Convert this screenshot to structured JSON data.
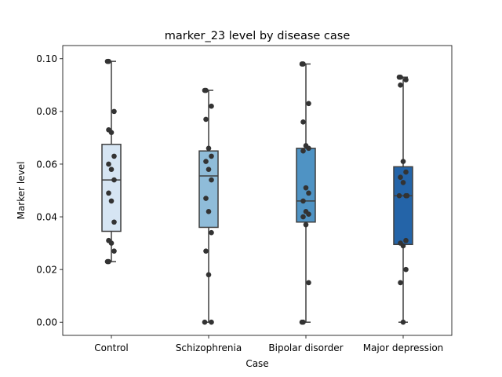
{
  "chart_data": {
    "type": "box",
    "title": "marker_23 level by disease case",
    "xlabel": "Case",
    "ylabel": "Marker level",
    "ylim": [
      -0.005,
      0.105
    ],
    "yticks": [
      "0.00",
      "0.02",
      "0.04",
      "0.06",
      "0.08",
      "0.10"
    ],
    "categories": [
      "Control",
      "Schizophrenia",
      "Bipolar disorder",
      "Major depression"
    ],
    "boxes": [
      {
        "color": "#d6e5f3",
        "min": 0.023,
        "q1": 0.0345,
        "median": 0.054,
        "q3": 0.0675,
        "max": 0.099
      },
      {
        "color": "#8fbcd9",
        "min": 0.0,
        "q1": 0.036,
        "median": 0.0555,
        "q3": 0.065,
        "max": 0.088
      },
      {
        "color": "#4f93c4",
        "min": 0.0,
        "q1": 0.038,
        "median": 0.046,
        "q3": 0.066,
        "max": 0.098
      },
      {
        "color": "#2464a8",
        "min": 0.0,
        "q1": 0.0295,
        "median": 0.048,
        "q3": 0.059,
        "max": 0.093
      }
    ],
    "points": [
      [
        0.099,
        0.099,
        0.08,
        0.073,
        0.072,
        0.063,
        0.06,
        0.058,
        0.054,
        0.049,
        0.046,
        0.038,
        0.031,
        0.03,
        0.027,
        0.023,
        0.023
      ],
      [
        0.088,
        0.088,
        0.082,
        0.077,
        0.066,
        0.063,
        0.061,
        0.058,
        0.054,
        0.047,
        0.042,
        0.034,
        0.027,
        0.018,
        0.0,
        0.0
      ],
      [
        0.098,
        0.098,
        0.083,
        0.076,
        0.067,
        0.066,
        0.065,
        0.051,
        0.049,
        0.046,
        0.042,
        0.041,
        0.04,
        0.037,
        0.015,
        0.0,
        0.0
      ],
      [
        0.093,
        0.093,
        0.092,
        0.09,
        0.061,
        0.057,
        0.055,
        0.053,
        0.048,
        0.048,
        0.048,
        0.031,
        0.03,
        0.029,
        0.02,
        0.015,
        0.0
      ]
    ]
  }
}
